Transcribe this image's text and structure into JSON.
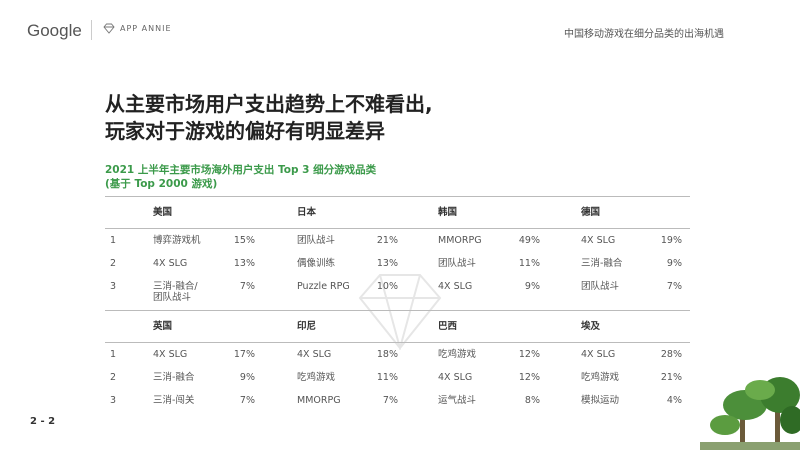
{
  "header": {
    "brand": "Google",
    "partner": "APP ANNIE",
    "deck_title": "中国移动游戏在细分品类的出海机遇"
  },
  "title_lines": [
    "从主要市场用户支出趋势上不难看出,",
    "玩家对于游戏的偏好有明显差异"
  ],
  "subtitle_lines": [
    "2021 上半年主要市场海外用户支出 Top 3 细分游戏品类",
    "(基于 Top 2000 游戏)"
  ],
  "accent_color": "#3b9a4a",
  "ranks": [
    "1",
    "2",
    "3"
  ],
  "groups": [
    {
      "markets": [
        {
          "name": "美国",
          "rows": [
            [
              "博弈游戏机",
              "15%"
            ],
            [
              "4X SLG",
              "13%"
            ],
            [
              "三消-融合/\n团队战斗",
              "7%"
            ]
          ]
        },
        {
          "name": "日本",
          "rows": [
            [
              "团队战斗",
              "21%"
            ],
            [
              "偶像训练",
              "13%"
            ],
            [
              "Puzzle RPG",
              "10%"
            ]
          ]
        },
        {
          "name": "韩国",
          "rows": [
            [
              "MMORPG",
              "49%"
            ],
            [
              "团队战斗",
              "11%"
            ],
            [
              "4X SLG",
              "9%"
            ]
          ]
        },
        {
          "name": "德国",
          "rows": [
            [
              "4X SLG",
              "19%"
            ],
            [
              "三消-融合",
              "9%"
            ],
            [
              "团队战斗",
              "7%"
            ]
          ]
        }
      ]
    },
    {
      "markets": [
        {
          "name": "英国",
          "rows": [
            [
              "4X SLG",
              "17%"
            ],
            [
              "三消-融合",
              "9%"
            ],
            [
              "三消-闯关",
              "7%"
            ]
          ]
        },
        {
          "name": "印尼",
          "rows": [
            [
              "4X SLG",
              "18%"
            ],
            [
              "吃鸡游戏",
              "11%"
            ],
            [
              "MMORPG",
              "7%"
            ]
          ]
        },
        {
          "name": "巴西",
          "rows": [
            [
              "吃鸡游戏",
              "12%"
            ],
            [
              "4X SLG",
              "12%"
            ],
            [
              "运气战斗",
              "8%"
            ]
          ]
        },
        {
          "name": "埃及",
          "rows": [
            [
              "4X SLG",
              "28%"
            ],
            [
              "吃鸡游戏",
              "21%"
            ],
            [
              "模拟运动",
              "4%"
            ]
          ]
        }
      ]
    }
  ],
  "page_number": "2 - 2"
}
